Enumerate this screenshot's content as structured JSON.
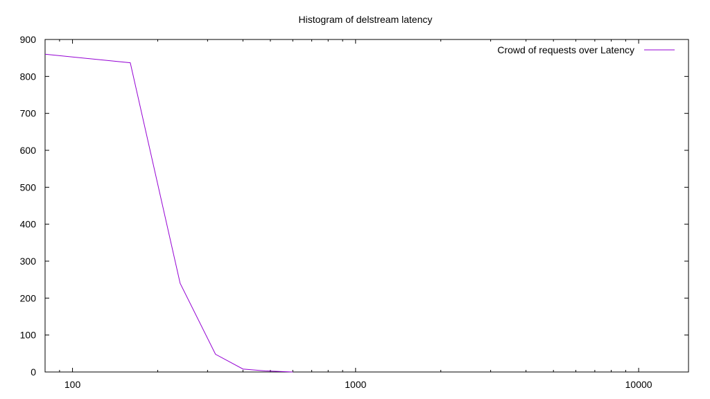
{
  "chart_data": {
    "type": "line",
    "title": "Histogram of delstream latency",
    "xlabel": "",
    "ylabel": "",
    "x_scale": "log",
    "xlim": [
      80,
      15000
    ],
    "ylim": [
      0,
      900
    ],
    "x_ticks": [
      100,
      1000,
      10000
    ],
    "x_tick_labels": [
      "100",
      "1000",
      "10000"
    ],
    "y_ticks": [
      0,
      100,
      200,
      300,
      400,
      500,
      600,
      700,
      800,
      900
    ],
    "y_tick_labels": [
      "0",
      "100",
      "200",
      "300",
      "400",
      "500",
      "600",
      "700",
      "800",
      "900"
    ],
    "grid": false,
    "legend_position": "top-right",
    "series": [
      {
        "name": "Crowd of requests over Latency",
        "color": "#9400d3",
        "x": [
          80,
          160,
          240,
          320,
          400,
          480,
          560,
          600
        ],
        "y": [
          860,
          837,
          240,
          48,
          8,
          3,
          1,
          0
        ]
      }
    ]
  }
}
